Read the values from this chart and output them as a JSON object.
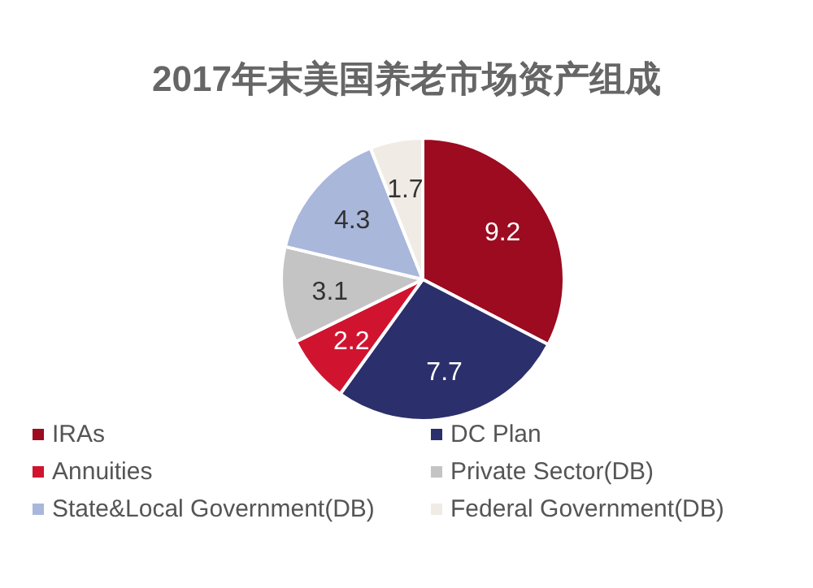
{
  "chart_data": {
    "type": "pie",
    "title": "2017年末美国养老市场资产组成",
    "categories": [
      "IRAs",
      "DC Plan",
      "Annuities",
      "Private Sector(DB)",
      "State&Local Government(DB)",
      "Federal Government(DB)"
    ],
    "values": [
      9.2,
      7.7,
      2.2,
      3.1,
      4.3,
      1.7
    ],
    "colors": [
      "#9c0b20",
      "#2b2f6b",
      "#d0142f",
      "#c4c4c4",
      "#a9b7db",
      "#f0ebe5"
    ],
    "data_labels": true,
    "legend": "bottom"
  }
}
